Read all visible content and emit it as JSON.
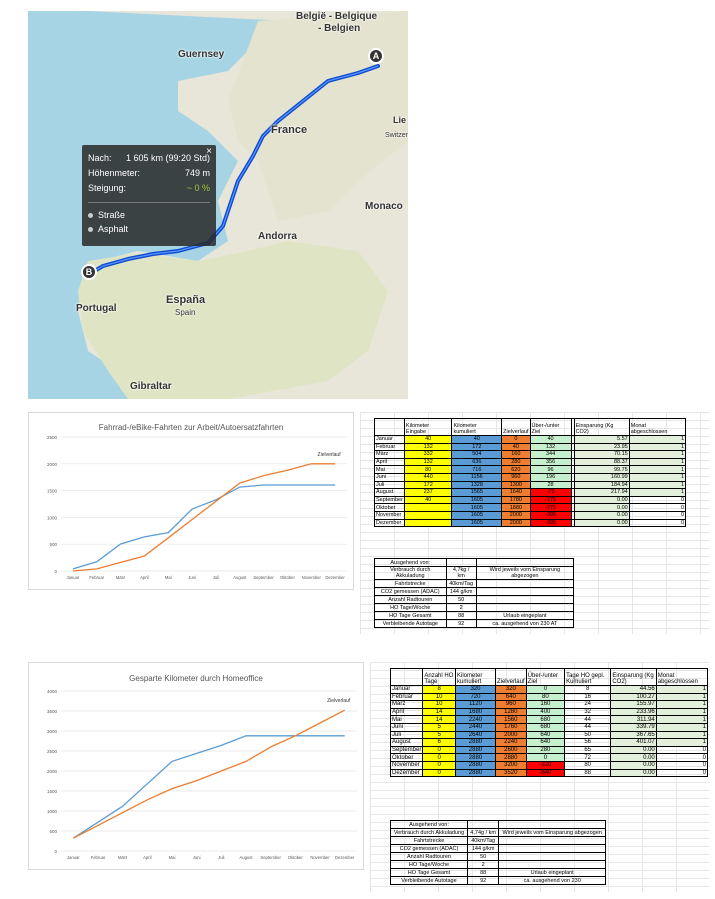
{
  "map": {
    "labels": {
      "belgie": "België - Belgique",
      "belgien": "- Belgien",
      "guernsey": "Guernsey",
      "france": "France",
      "lie": "Lie",
      "switz": "Switzer",
      "monaco": "Monaco",
      "andorra": "Andorra",
      "espana": "España",
      "spain": "Spain",
      "portugal": "Portugal",
      "gibraltar": "Gibraltar"
    },
    "marker_a": "A",
    "marker_b": "B",
    "popup": {
      "nach_label": "Nach:",
      "nach_value": "1 605 km (99:20 Std)",
      "hoehe_label": "Höhenmeter:",
      "hoehe_value": "749 m",
      "steig_label": "Steigung:",
      "steig_value": "~ 0 %",
      "close": "×",
      "surface1": "Straße",
      "surface2": "Asphalt"
    }
  },
  "chart1": {
    "title": "Fahrrad-/eBike-Fahrten zur Arbeit/Autoersatzfahrten",
    "legend_label": "Zielverlauf"
  },
  "chart2": {
    "title": "Gesparte Kilometer durch Homeoffice",
    "legend_label": "Zielverlauf"
  },
  "chart_data": [
    {
      "type": "line",
      "title": "Fahrrad-/eBike-Fahrten zur Arbeit/Autoersatzfahrten",
      "categories": [
        "Januar",
        "Februar",
        "März",
        "April",
        "Mai",
        "Juni",
        "Juli",
        "August",
        "September",
        "Oktober",
        "November",
        "Dezember"
      ],
      "series": [
        {
          "name": "",
          "values": [
            40,
            172,
            504,
            636,
            716,
            1156,
            1328,
            1565,
            1605,
            1605,
            1605,
            1605
          ],
          "color": "#5b9bd5"
        },
        {
          "name": "Zielverlauf",
          "values": [
            0,
            40,
            160,
            280,
            620,
            960,
            1300,
            1640,
            1780,
            1880,
            2000,
            2000
          ],
          "color": "#ed7d31"
        }
      ],
      "ylim": [
        0,
        2500
      ],
      "yticks": [
        0,
        500,
        1000,
        1500,
        2000,
        2500
      ],
      "grid": true
    },
    {
      "type": "line",
      "title": "Gesparte Kilometer durch Homeoffice",
      "categories": [
        "Januar",
        "Februar",
        "März",
        "April",
        "Mai",
        "Juni",
        "Juli",
        "August",
        "September",
        "Oktober",
        "November",
        "Dezember"
      ],
      "series": [
        {
          "name": "",
          "values": [
            320,
            720,
            1120,
            1680,
            2240,
            2440,
            2640,
            2880,
            2880,
            2880,
            2880,
            2880
          ],
          "color": "#5b9bd5"
        },
        {
          "name": "Zielverlauf",
          "values": [
            320,
            640,
            960,
            1280,
            1560,
            1760,
            2000,
            2240,
            2600,
            2880,
            3200,
            3520
          ],
          "color": "#ed7d31"
        }
      ],
      "ylim": [
        0,
        4000
      ],
      "yticks": [
        0,
        500,
        1000,
        1500,
        2000,
        2500,
        3000,
        3500,
        4000
      ],
      "grid": true
    }
  ],
  "table1": {
    "headers": [
      "",
      "Kilometer Eingabe",
      "Kilometer kumuliert",
      "Zielverlauf",
      "Über-/unter Ziel",
      "",
      "Einsparung (Kg CO2)",
      "Monat abgeschlossen"
    ],
    "rows": [
      [
        "Januar",
        "40",
        "40",
        "0",
        "40",
        "",
        "5.57",
        "1"
      ],
      [
        "Februar",
        "132",
        "172",
        "40",
        "132",
        "",
        "23.95",
        "1"
      ],
      [
        "März",
        "332",
        "504",
        "160",
        "344",
        "",
        "70.15",
        "1"
      ],
      [
        "April",
        "132",
        "636",
        "280",
        "356",
        "",
        "88.37",
        "1"
      ],
      [
        "Mai",
        "80",
        "716",
        "620",
        "96",
        "",
        "99.75",
        "1"
      ],
      [
        "Juni",
        "440",
        "1156",
        "960",
        "196",
        "",
        "160.99",
        "1"
      ],
      [
        "Juli",
        "172",
        "1328",
        "1300",
        "28",
        "",
        "184.94",
        "1"
      ],
      [
        "August",
        "237",
        "1565",
        "1640",
        "-75",
        "",
        "217.94",
        "1"
      ],
      [
        "September",
        "40",
        "1605",
        "1780",
        "-175",
        "",
        "0.00",
        "0"
      ],
      [
        "Oktober",
        "",
        "1605",
        "1880",
        "-275",
        "",
        "0.00",
        "0"
      ],
      [
        "November",
        "",
        "1605",
        "2000",
        "-395",
        "",
        "0.00",
        "0"
      ],
      [
        "Dezember",
        "",
        "1605",
        "2000",
        "-395",
        "",
        "0.00",
        "0"
      ]
    ]
  },
  "info1": {
    "rows": [
      [
        "Ausgehend von:",
        "",
        ""
      ],
      [
        "Verbrauch durch Akkuladung",
        "4,7kg / km",
        "Wird jeweils vom Einsparung abgezogen"
      ],
      [
        "Fahrtstrecke",
        "40km/Tag",
        ""
      ],
      [
        "CO2 gemessen (ADAC)",
        "144 g/km",
        ""
      ],
      [
        "Anzahl Radtouren",
        "50",
        ""
      ],
      [
        "HO Tage/Woche",
        "2",
        ""
      ],
      [
        "HO Tage Gesamt",
        "88",
        "Urlaub eingeplant"
      ],
      [
        "Verbleibende Autotage",
        "92",
        "ca. ausgehend von 230 AT"
      ]
    ]
  },
  "table2": {
    "headers": [
      "",
      "Anzahl HO Tage",
      "Kilometer kumuliert",
      "Zielverlauf",
      "Über-/unter Ziel",
      "Tage HO gepl. Kumuliert",
      "Einsparung (Kg CO2)",
      "Monat abgeschlossen"
    ],
    "rows": [
      [
        "Januar",
        "8",
        "320",
        "320",
        "0",
        "8",
        "44.56",
        "1"
      ],
      [
        "Februar",
        "10",
        "720",
        "640",
        "80",
        "16",
        "100.27",
        "1"
      ],
      [
        "März",
        "10",
        "1120",
        "960",
        "160",
        "24",
        "155.97",
        "1"
      ],
      [
        "April",
        "14",
        "1680",
        "1280",
        "400",
        "32",
        "233.96",
        "1"
      ],
      [
        "Mai",
        "14",
        "2240",
        "1560",
        "680",
        "44",
        "311.94",
        "1"
      ],
      [
        "Juni",
        "5",
        "2440",
        "1760",
        "680",
        "44",
        "339.79",
        "1"
      ],
      [
        "Juli",
        "5",
        "2640",
        "2000",
        "640",
        "50",
        "367.65",
        "1"
      ],
      [
        "August",
        "6",
        "2880",
        "2240",
        "640",
        "56",
        "401.07",
        "1"
      ],
      [
        "September",
        "0",
        "2880",
        "2600",
        "280",
        "65",
        "0.00",
        "0"
      ],
      [
        "Oktober",
        "0",
        "2880",
        "2880",
        "0",
        "72",
        "0.00",
        "0"
      ],
      [
        "November",
        "0",
        "2880",
        "3200",
        "-320",
        "80",
        "0.00",
        "0"
      ],
      [
        "Dezember",
        "0",
        "2880",
        "3520",
        "-640",
        "88",
        "0.00",
        "0"
      ]
    ]
  },
  "info2": {
    "rows": [
      [
        "Ausgehend von:",
        "",
        ""
      ],
      [
        "Verbrauch durch Akkuladung",
        "4,74g / km",
        "Wird jeweils vom Einsparung abgezogen"
      ],
      [
        "Fahrtstrecke",
        "40km/Tag",
        ""
      ],
      [
        "CO2 gemessen (ADAC)",
        "144 g/km",
        ""
      ],
      [
        "Anzahl Radtouren",
        "50",
        ""
      ],
      [
        "HO Tage/Woche",
        "2",
        ""
      ],
      [
        "HO Tage Gesamt",
        "88",
        "Urlaub eingeplant"
      ],
      [
        "Verbleibende Autotage",
        "92",
        "ca. ausgehend von 230"
      ]
    ]
  }
}
